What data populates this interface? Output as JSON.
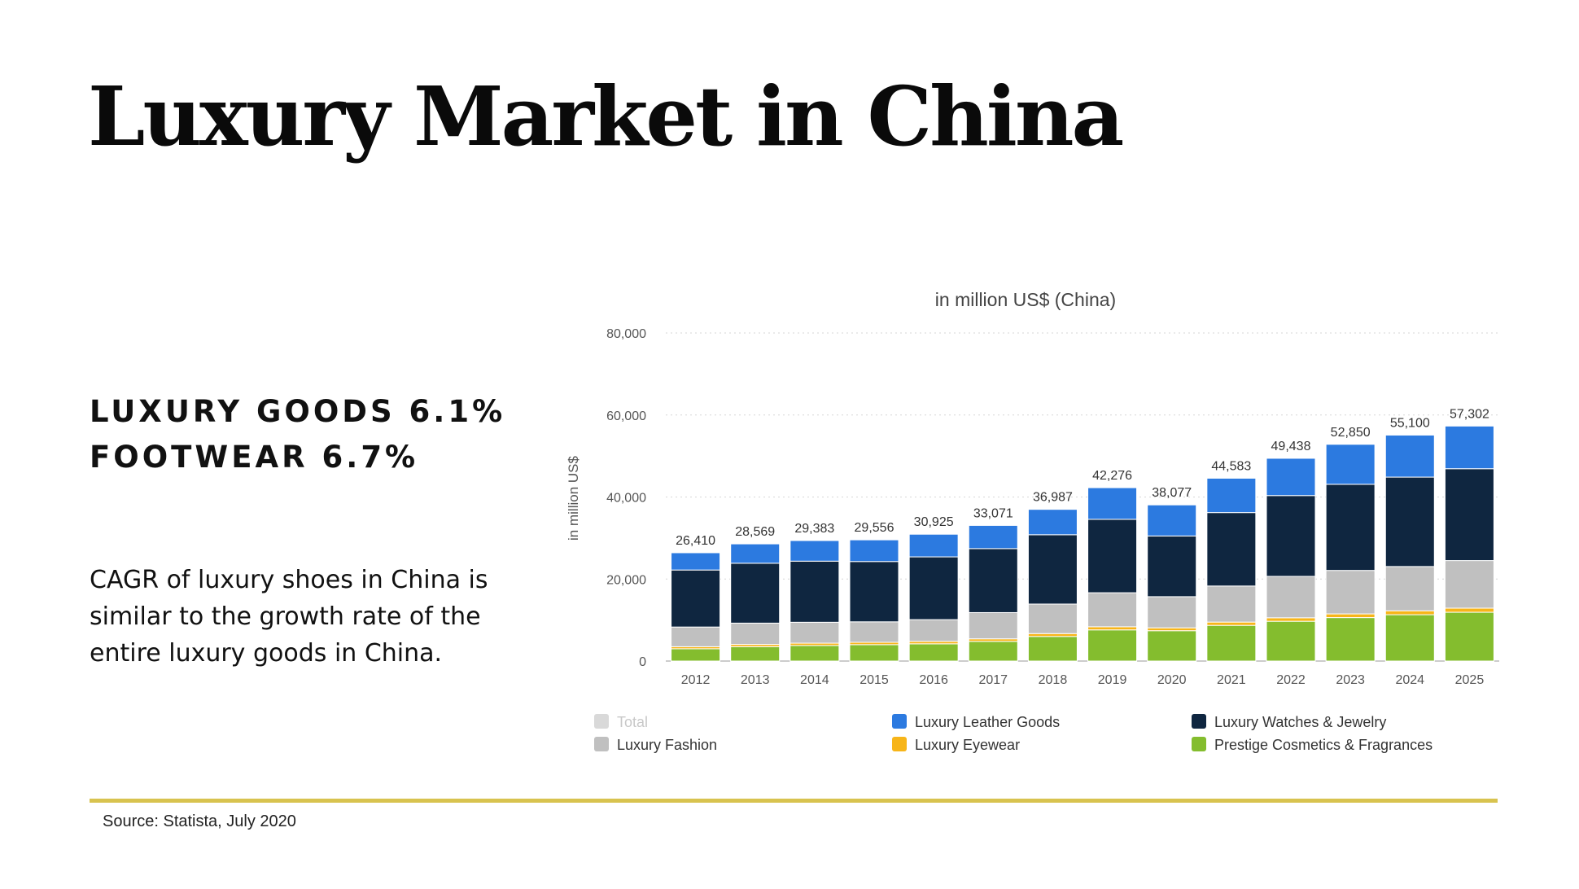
{
  "slide": {
    "title": "Luxury Market in China",
    "stats": [
      "LUXURY GOODS 6.1%",
      "FOOTWEAR 6.7%"
    ],
    "description": "CAGR of luxury shoes in China is similar to the growth rate of the entire luxury goods in China.",
    "source": "Source: Statista, July 2020",
    "rule_color": "#d8c34f"
  },
  "chart_data": {
    "type": "bar",
    "stacked": true,
    "title": "in million US$ (China)",
    "xlabel": "",
    "ylabel": "in million US$",
    "ylim": [
      0,
      80000
    ],
    "yticks": [
      0,
      20000,
      40000,
      60000,
      80000
    ],
    "ytick_labels": [
      "0",
      "20,000",
      "40,000",
      "60,000",
      "80,000"
    ],
    "grid": true,
    "categories": [
      "2012",
      "2013",
      "2014",
      "2015",
      "2016",
      "2017",
      "2018",
      "2019",
      "2020",
      "2021",
      "2022",
      "2023",
      "2024",
      "2025"
    ],
    "totals": [
      26410,
      28569,
      29383,
      29556,
      30925,
      33071,
      36987,
      42276,
      38077,
      44583,
      49438,
      52850,
      55100,
      57302
    ],
    "total_labels": [
      "26,410",
      "28,569",
      "29,383",
      "29,556",
      "30,925",
      "33,071",
      "36,987",
      "42,276",
      "38,077",
      "44,583",
      "49,438",
      "52,850",
      "55,100",
      "57,302"
    ],
    "series": [
      {
        "name": "Prestige Cosmetics & Fragrances",
        "color": "#84bd2e",
        "values": [
          3000,
          3500,
          3800,
          4000,
          4200,
          4800,
          6000,
          7600,
          7400,
          8700,
          9700,
          10600,
          11300,
          11900
        ]
      },
      {
        "name": "Luxury Eyewear",
        "color": "#f7b519",
        "values": [
          500,
          550,
          560,
          570,
          600,
          620,
          700,
          760,
          700,
          800,
          850,
          900,
          950,
          1000
        ]
      },
      {
        "name": "Luxury Fashion",
        "color": "#c0c0c0",
        "values": [
          4800,
          5200,
          5100,
          5000,
          5300,
          6400,
          7200,
          8300,
          7600,
          8800,
          10100,
          10600,
          10800,
          11600
        ]
      },
      {
        "name": "Luxury Watches & Jewelry",
        "color": "#0f2640",
        "values": [
          13900,
          14600,
          14900,
          14700,
          15300,
          15600,
          16900,
          17900,
          14800,
          17900,
          19700,
          21000,
          21800,
          22400
        ]
      },
      {
        "name": "Luxury Leather Goods",
        "color": "#2c7ae0",
        "values": [
          4210,
          4719,
          5023,
          5286,
          5525,
          5651,
          6187,
          7716,
          7577,
          8383,
          9088,
          9750,
          10250,
          10402
        ]
      }
    ],
    "legend": [
      {
        "name": "Total",
        "color": "#d9d9d9",
        "muted": true
      },
      {
        "name": "Luxury Leather Goods",
        "color": "#2c7ae0"
      },
      {
        "name": "Luxury Watches & Jewelry",
        "color": "#0f2640"
      },
      {
        "name": "Luxury Fashion",
        "color": "#c0c0c0"
      },
      {
        "name": "Luxury Eyewear",
        "color": "#f7b519"
      },
      {
        "name": "Prestige Cosmetics & Fragrances",
        "color": "#84bd2e"
      }
    ]
  }
}
